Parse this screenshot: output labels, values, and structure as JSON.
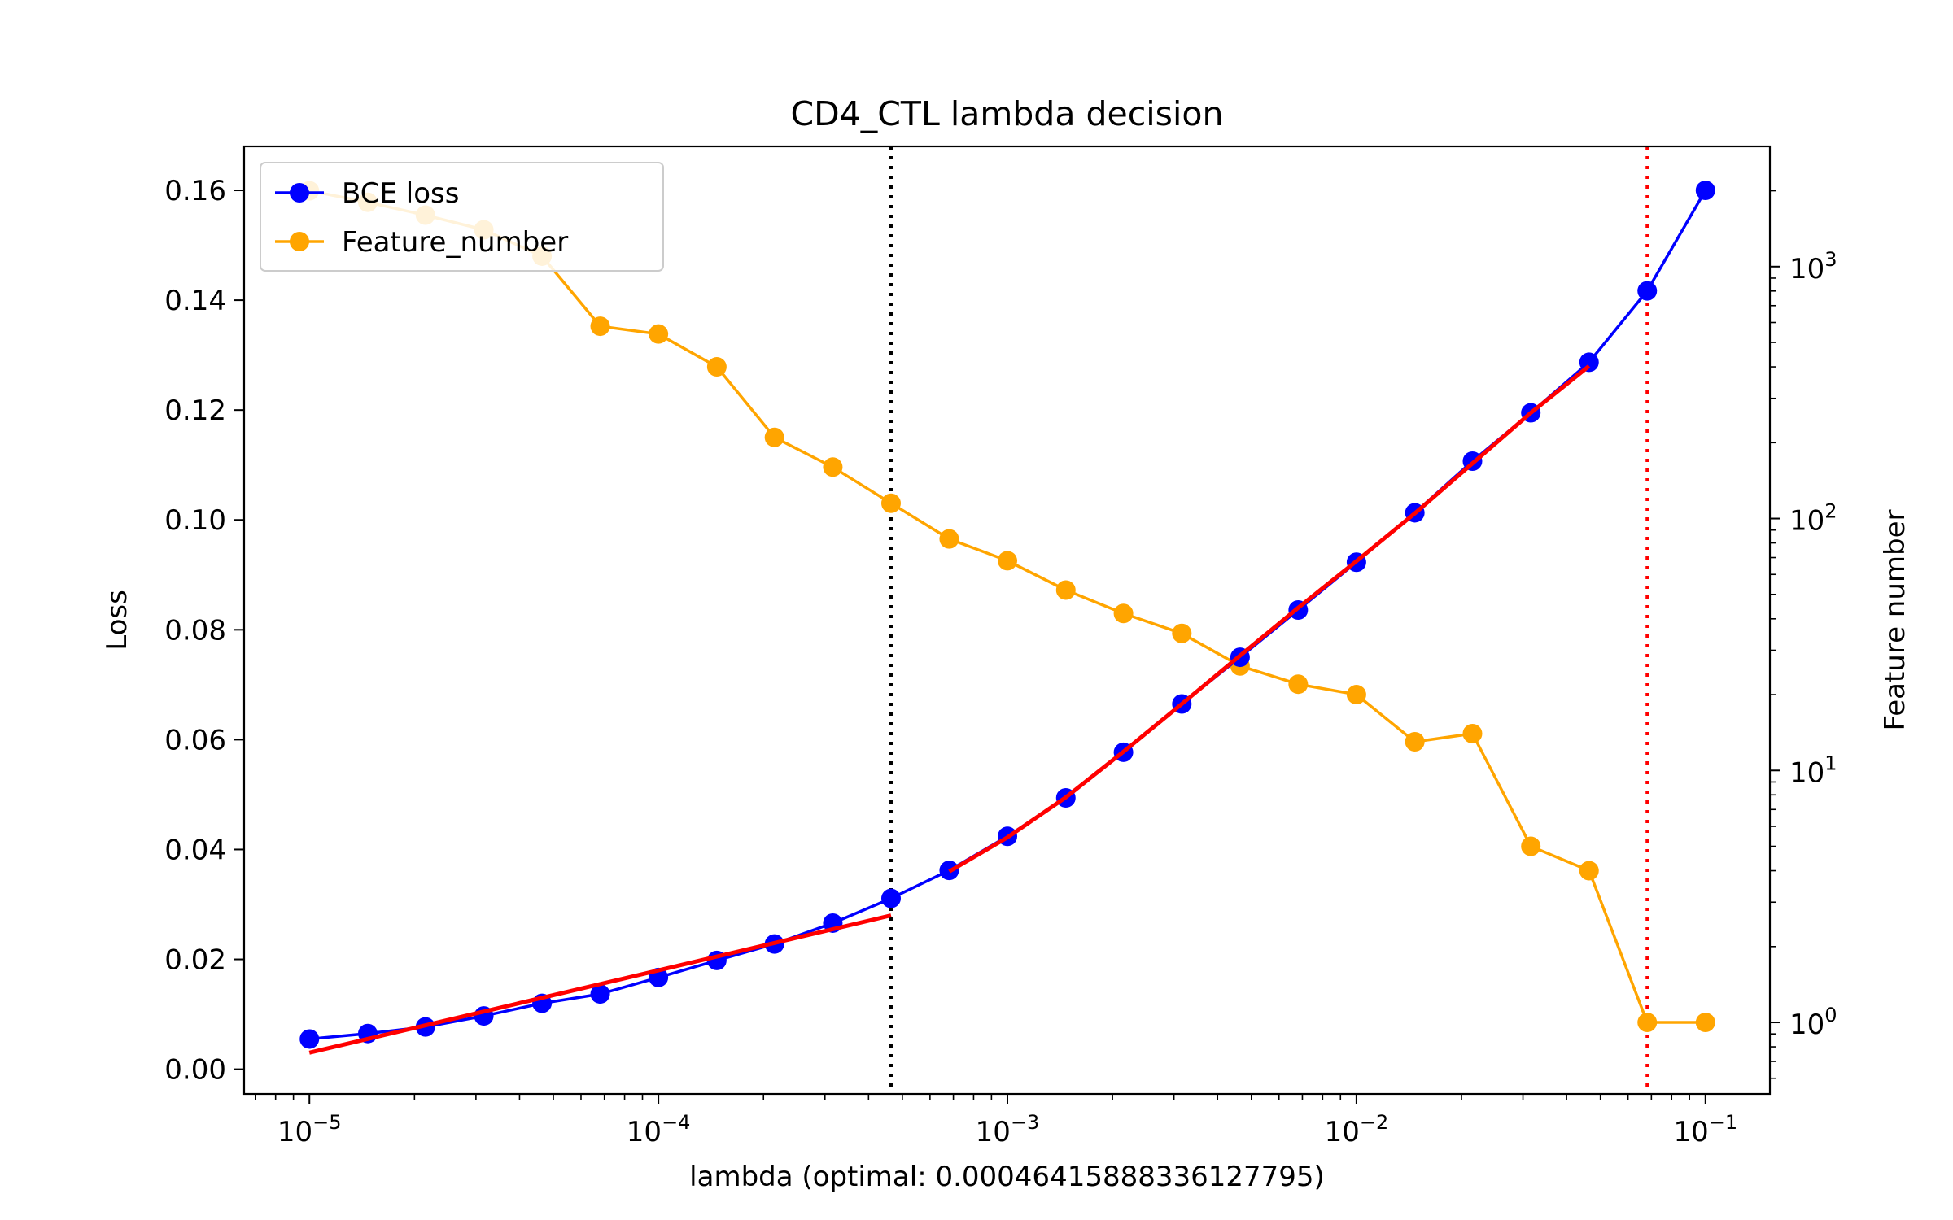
{
  "chart_data": {
    "type": "line",
    "title": "CD4_CTL lambda decision",
    "xlabel": "lambda (optimal: 0.00046415888336127795)",
    "ylabel_left": "Loss",
    "ylabel_right": "Feature number",
    "xscale": "log",
    "xlim": [
      6.5e-06,
      0.153
    ],
    "ylim_left": [
      -0.0045,
      0.168
    ],
    "ylim_right_log": [
      0.52,
      3000
    ],
    "grid": false,
    "legend_position": "upper-left",
    "x_ticks": [
      {
        "value": 1e-05,
        "base": "10",
        "exp": "−5"
      },
      {
        "value": 0.0001,
        "base": "10",
        "exp": "−4"
      },
      {
        "value": 0.001,
        "base": "10",
        "exp": "−3"
      },
      {
        "value": 0.01,
        "base": "10",
        "exp": "−2"
      },
      {
        "value": 0.1,
        "base": "10",
        "exp": "−1"
      }
    ],
    "y_left_ticks": [
      {
        "value": 0.0,
        "label": "0.00"
      },
      {
        "value": 0.02,
        "label": "0.02"
      },
      {
        "value": 0.04,
        "label": "0.04"
      },
      {
        "value": 0.06,
        "label": "0.06"
      },
      {
        "value": 0.08,
        "label": "0.08"
      },
      {
        "value": 0.1,
        "label": "0.10"
      },
      {
        "value": 0.12,
        "label": "0.12"
      },
      {
        "value": 0.14,
        "label": "0.14"
      },
      {
        "value": 0.16,
        "label": "0.16"
      }
    ],
    "y_right_ticks": [
      {
        "value": 1,
        "base": "10",
        "exp": "0"
      },
      {
        "value": 10,
        "base": "10",
        "exp": "1"
      },
      {
        "value": 100,
        "base": "10",
        "exp": "2"
      },
      {
        "value": 1000,
        "base": "10",
        "exp": "3"
      }
    ],
    "x": [
      1e-05,
      1.47e-05,
      2.15e-05,
      3.16e-05,
      4.64e-05,
      6.81e-05,
      0.0001,
      0.000147,
      0.000215,
      0.000316,
      0.000464,
      0.000681,
      0.001,
      0.00147,
      0.00215,
      0.00316,
      0.00464,
      0.00681,
      0.01,
      0.0147,
      0.0215,
      0.0316,
      0.0464,
      0.0681,
      0.1
    ],
    "series": [
      {
        "name": "BCE loss",
        "axis": "left",
        "color": "#0000ff",
        "values": [
          0.0055,
          0.0065,
          0.0077,
          0.0097,
          0.012,
          0.0137,
          0.0167,
          0.0198,
          0.0228,
          0.0266,
          0.0311,
          0.0362,
          0.0424,
          0.0494,
          0.0577,
          0.0665,
          0.075,
          0.0836,
          0.0923,
          0.1013,
          0.1107,
          0.1195,
          0.1287,
          0.1417,
          0.16
        ]
      },
      {
        "name": "Feature_number",
        "axis": "right",
        "color": "#ffa500",
        "values": [
          2000,
          1800,
          1600,
          1400,
          1100,
          580,
          540,
          400,
          210,
          160,
          115,
          83,
          68,
          52,
          42,
          35,
          26,
          22,
          20,
          13,
          14,
          5,
          4,
          1,
          1
        ]
      }
    ],
    "fit_lines": [
      {
        "color": "#ff0000",
        "x": [
          1e-05,
          0.000464
        ],
        "y": [
          0.003,
          0.028
        ]
      },
      {
        "color": "#ff0000",
        "x": [
          0.000681,
          0.001,
          0.00147,
          0.00215,
          0.00316,
          0.00464,
          0.00681,
          0.01,
          0.0147,
          0.0215,
          0.0316,
          0.0464
        ],
        "y": [
          0.036,
          0.0422,
          0.0495,
          0.0578,
          0.0665,
          0.0753,
          0.084,
          0.0925,
          0.1012,
          0.1103,
          0.1195,
          0.128
        ]
      }
    ],
    "vlines": [
      {
        "x": 0.000464,
        "color": "#000000",
        "style": "dotted"
      },
      {
        "x": 0.0681,
        "color": "#ff0000",
        "style": "dotted"
      }
    ]
  }
}
